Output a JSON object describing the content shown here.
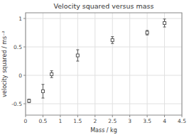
{
  "chart_data": {
    "type": "scatter",
    "title": "Velocity squared versus mass",
    "xlabel": "Mass / kg",
    "ylabel": "velocity squared / ms⁻²",
    "x": [
      0.1,
      0.5,
      0.75,
      1.5,
      2.5,
      3.5,
      4.0
    ],
    "values": [
      -0.45,
      -0.28,
      0.02,
      0.35,
      0.62,
      0.75,
      0.92
    ],
    "yerr": [
      0.03,
      0.12,
      0.06,
      0.1,
      0.06,
      0.04,
      0.07
    ],
    "xlim": [
      0,
      4.5
    ],
    "ylim": [
      -0.7,
      1.1
    ],
    "xticks": [
      0,
      0.5,
      1,
      1.5,
      2,
      2.5,
      3,
      3.5,
      4,
      4.5
    ],
    "yticks": [
      -0.5,
      0.0,
      0.5,
      1.0
    ],
    "color": "#555555",
    "marker": "square",
    "grid": true
  }
}
